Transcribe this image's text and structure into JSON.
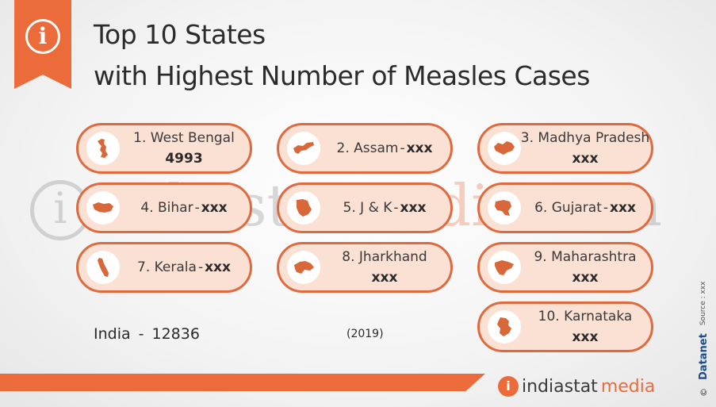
{
  "header": {
    "title_line1": "Top 10 States",
    "title_line2": "with Highest Number of Measles Cases",
    "info_glyph": "i"
  },
  "watermark": {
    "text_a": "indiastat",
    "text_b": "media",
    "text_c": ".com"
  },
  "states": [
    {
      "label": "1. West Bengal",
      "sep": "",
      "value": "4993",
      "icon": "west-bengal-map-icon"
    },
    {
      "label": "2. Assam",
      "sep": "-",
      "value": "xxx",
      "icon": "assam-map-icon"
    },
    {
      "label": "3. Madhya Pradesh",
      "sep": "",
      "value": "xxx",
      "icon": "madhya-pradesh-map-icon"
    },
    {
      "label": "4. Bihar",
      "sep": "-",
      "value": "xxx",
      "icon": "bihar-map-icon"
    },
    {
      "label": "5. J & K",
      "sep": "-",
      "value": "xxx",
      "icon": "jammu-kashmir-map-icon"
    },
    {
      "label": "6. Gujarat",
      "sep": "-",
      "value": "xxx",
      "icon": "gujarat-map-icon"
    },
    {
      "label": "7. Kerala",
      "sep": "-",
      "value": "xxx",
      "icon": "kerala-map-icon"
    },
    {
      "label": "8. Jharkhand",
      "sep": "",
      "value": "xxx",
      "icon": "jharkhand-map-icon"
    },
    {
      "label": "9. Maharashtra",
      "sep": "",
      "value": "xxx",
      "icon": "maharashtra-map-icon"
    },
    {
      "label": "10. Karnataka",
      "sep": "",
      "value": "xxx",
      "icon": "karnataka-map-icon"
    }
  ],
  "footer": {
    "india_label": "India",
    "india_sep": "-",
    "india_value": "12836",
    "year": "(2019)",
    "logo_a": "indiastat",
    "logo_b": "media",
    "logo_glyph": "i",
    "copyright": "©",
    "brand": "Datanet",
    "source": "Source : xxx"
  },
  "colors": {
    "accent": "#ec6b3a",
    "pill_border": "#df6a3f",
    "pill_fill": "#fbe0d4",
    "map_fill": "#d8673a",
    "brand_blue": "#1f4e8c"
  }
}
